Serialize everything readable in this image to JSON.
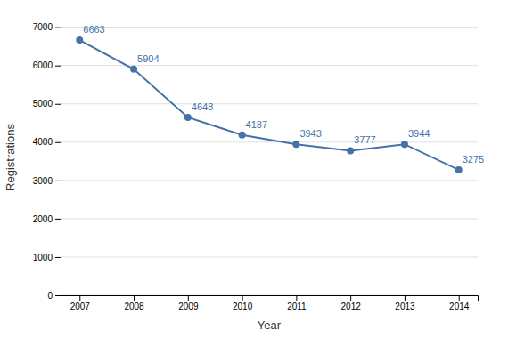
{
  "chart_data": {
    "type": "line",
    "x": [
      2007,
      2008,
      2009,
      2010,
      2011,
      2012,
      2013,
      2014
    ],
    "values": [
      6663,
      5904,
      4648,
      4187,
      3943,
      3777,
      3944,
      3275
    ],
    "color": "#4472a8",
    "marker": "circle",
    "xlabel": "Year",
    "ylabel": "Registrations",
    "xlim": [
      2006.65,
      2014.35
    ],
    "xticks": [
      2007,
      2008,
      2009,
      2010,
      2011,
      2012,
      2013,
      2014
    ],
    "ylim": [
      0,
      7200
    ],
    "yticks": [
      0,
      1000,
      2000,
      3000,
      4000,
      5000,
      6000,
      7000
    ],
    "grid": true,
    "data_labels": true
  }
}
